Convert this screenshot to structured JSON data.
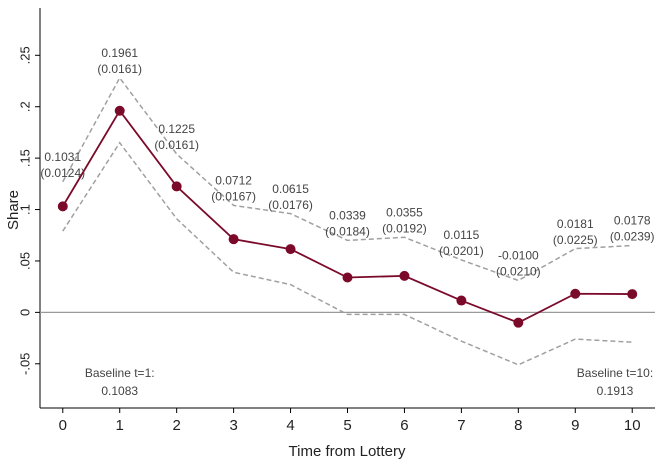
{
  "chart_data": {
    "type": "line",
    "x_label": "Time from Lottery",
    "y_label": "Share",
    "x": [
      0,
      1,
      2,
      3,
      4,
      5,
      6,
      7,
      8,
      9,
      10
    ],
    "series": [
      {
        "color": "#7b0a2a",
        "values": [
          0.1031,
          0.1961,
          0.1225,
          0.0712,
          0.0615,
          0.0339,
          0.0355,
          0.0115,
          -0.01,
          0.0181,
          0.0178
        ],
        "value_labels": [
          "0.1031",
          "0.1961",
          "0.1225",
          "0.0712",
          "0.0615",
          "0.0339",
          "0.0355",
          "0.0115",
          "-0.0100",
          "0.0181",
          "0.0178"
        ],
        "error_labels": [
          "(0.0124)",
          "(0.0161)",
          "(0.0161)",
          "(0.0167)",
          "(0.0176)",
          "(0.0184)",
          "(0.0192)",
          "(0.0201)",
          "(0.0210)",
          "(0.0225)",
          "(0.0239)"
        ],
        "ci_lower": [
          0.079,
          0.165,
          0.091,
          0.039,
          0.027,
          -0.002,
          -0.002,
          -0.028,
          -0.051,
          -0.026,
          -0.029
        ],
        "ci_upper": [
          0.127,
          0.228,
          0.154,
          0.104,
          0.096,
          0.07,
          0.073,
          0.051,
          0.031,
          0.062,
          0.065
        ],
        "ci_color": "#a0a0a0"
      }
    ],
    "annotations": [
      {
        "x": 1,
        "lines": [
          "Baseline t=1:",
          "0.1083"
        ]
      },
      {
        "x": 10,
        "lines": [
          "Baseline t=10:",
          "0.1913"
        ]
      }
    ],
    "xlim": [
      -0.4,
      10.4
    ],
    "ylim": [
      -0.093,
      0.296
    ],
    "xticks": [
      0,
      1,
      2,
      3,
      4,
      5,
      6,
      7,
      8,
      9,
      10
    ],
    "yticks": [
      {
        "value": -0.05,
        "label": "-.05"
      },
      0,
      {
        "value": 0.05,
        "label": ".05"
      },
      {
        "value": 0.1,
        "label": ".1"
      },
      {
        "value": 0.15,
        "label": ".15"
      },
      {
        "value": 0.2,
        "label": ".2"
      },
      {
        "value": 0.25,
        "label": ".25"
      }
    ],
    "zero_line": true
  }
}
